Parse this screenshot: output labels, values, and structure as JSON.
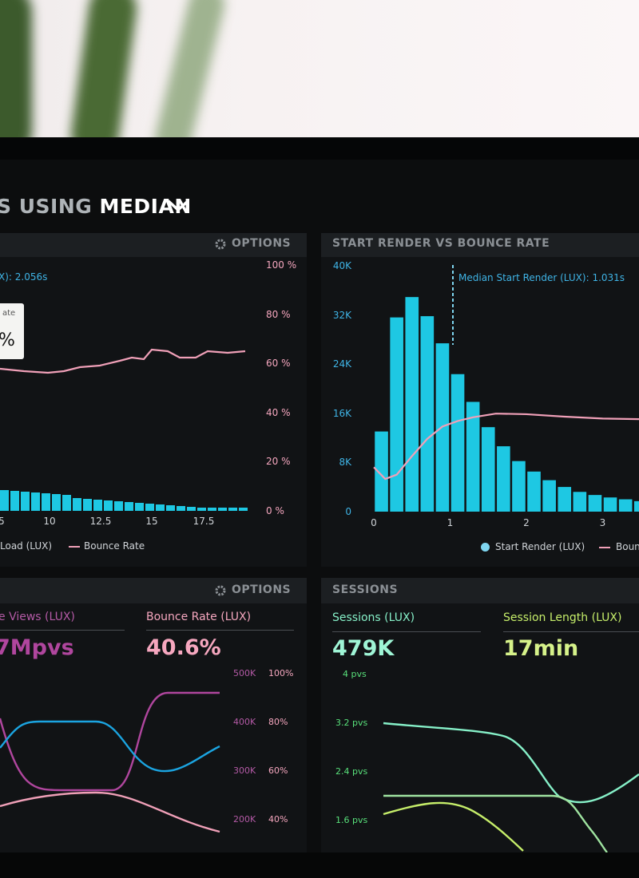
{
  "header": {
    "title_prefix": "S USING ",
    "title_strong": "MEDIAN"
  },
  "left_chart": {
    "options_label": "OPTIONS",
    "median_label": "X): 2.056s",
    "tooltip_title": "ate",
    "tooltip_value": "%",
    "right_ticks": [
      "100 %",
      "80 %",
      "60 %",
      "40 %",
      "20 %",
      "0 %"
    ],
    "x_ticks": [
      "5",
      "10",
      "12.5",
      "15",
      "17.5"
    ],
    "legend": [
      "Load (LUX)",
      "Bounce Rate"
    ]
  },
  "chart_data": [
    {
      "type": "bar",
      "title": "START RENDER VS BOUNCE RATE",
      "median_label": "Median Start Render (LUX): 1.031s",
      "y_ticks": [
        "40K",
        "32K",
        "24K",
        "16K",
        "8K",
        "0"
      ],
      "x_ticks": [
        "0",
        "1",
        "2",
        "3"
      ],
      "ylim": [
        0,
        40000
      ],
      "xlim": [
        0,
        3.5
      ],
      "bar_width": 0.2,
      "series": [
        {
          "name": "Start Render (LUX)",
          "x": [
            0.1,
            0.3,
            0.5,
            0.7,
            0.9,
            1.1,
            1.3,
            1.5,
            1.7,
            1.9,
            2.1,
            2.3,
            2.5,
            2.7,
            2.9,
            3.1,
            3.3,
            3.5
          ],
          "values": [
            13000,
            31500,
            34800,
            31700,
            27300,
            22300,
            17800,
            13700,
            10600,
            8200,
            6500,
            5100,
            4000,
            3200,
            2700,
            2300,
            2000,
            1700
          ]
        },
        {
          "name": "Bounce Rate",
          "x": [
            0.0,
            0.15,
            0.3,
            0.5,
            0.7,
            0.9,
            1.1,
            1.3,
            1.6,
            2.0,
            2.5,
            3.0,
            3.5
          ],
          "values": [
            7200,
            5300,
            6000,
            9000,
            11800,
            13800,
            14700,
            15300,
            15900,
            15800,
            15400,
            15100,
            15000
          ]
        }
      ],
      "legend": [
        "Start Render (LUX)",
        "Boun"
      ]
    }
  ],
  "stats": {
    "options_label": "OPTIONS",
    "page_views_label": "e Views (LUX)",
    "page_views_value": "7Mpvs",
    "bounce_label": "Bounce Rate (LUX)",
    "bounce_value": "40.6%",
    "axis_k": [
      "500K",
      "400K",
      "300K",
      "200K"
    ],
    "axis_pct": [
      "100%",
      "80%",
      "60%",
      "40%"
    ]
  },
  "sessions": {
    "title": "SESSIONS",
    "sessions_label": "Sessions (LUX)",
    "sessions_value": "479K",
    "length_label": "Session Length (LUX)",
    "length_value": "17min",
    "axis_pvs": [
      "4 pvs",
      "3.2 pvs",
      "2.4 pvs",
      "1.6 pvs"
    ]
  },
  "colors": {
    "cyan": "#1ec8e3",
    "pink": "#f0a0b8",
    "magenta": "#c24fb0",
    "blue_line": "#1ba4e0",
    "mint": "#86f0c8",
    "lime": "#c6ee6a",
    "green": "#58e07a"
  }
}
